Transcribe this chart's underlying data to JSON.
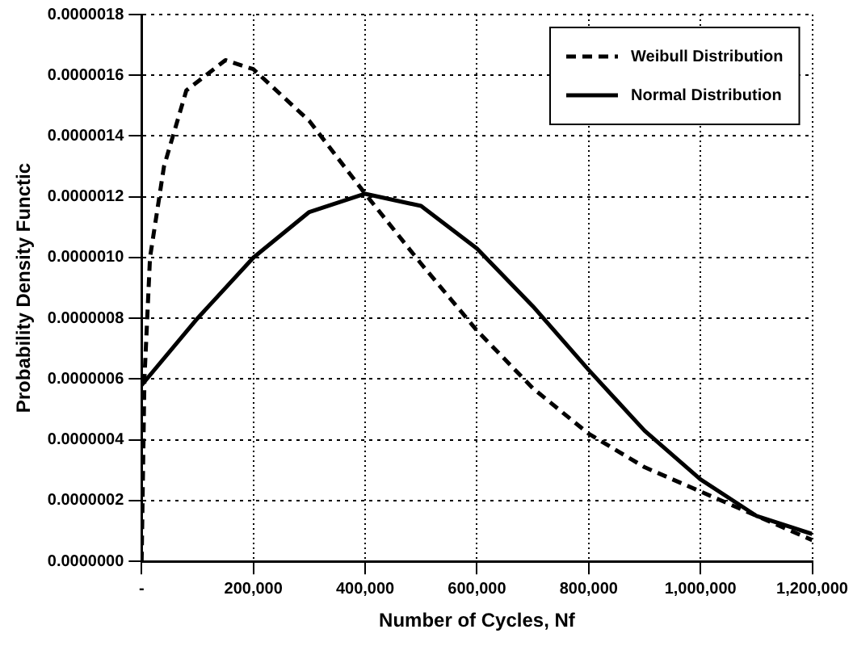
{
  "chart_data": {
    "type": "line",
    "xlabel": "Number of Cycles, Nf",
    "ylabel": "Probability Density Functic",
    "xlim": [
      0,
      1200000
    ],
    "xticks": [
      {
        "value": 0,
        "label": "-"
      },
      {
        "value": 200000,
        "label": "200,000"
      },
      {
        "value": 400000,
        "label": "400,000"
      },
      {
        "value": 600000,
        "label": "600,000"
      },
      {
        "value": 800000,
        "label": "800,000"
      },
      {
        "value": 1000000,
        "label": "1,000,000"
      },
      {
        "value": 1200000,
        "label": "1,200,000"
      }
    ],
    "ylim": [
      0,
      1.8e-06
    ],
    "yticks": [
      {
        "value": 0,
        "label": "0.0000000"
      },
      {
        "value": 2e-07,
        "label": "0.0000002"
      },
      {
        "value": 4e-07,
        "label": "0.0000004"
      },
      {
        "value": 6e-07,
        "label": "0.0000006"
      },
      {
        "value": 8e-07,
        "label": "0.0000008"
      },
      {
        "value": 1e-06,
        "label": "0.0000010"
      },
      {
        "value": 1.2e-06,
        "label": "0.0000012"
      },
      {
        "value": 1.4e-06,
        "label": "0.0000014"
      },
      {
        "value": 1.6e-06,
        "label": "0.0000016"
      },
      {
        "value": 1.8e-06,
        "label": "0.0000018"
      }
    ],
    "grid": true,
    "legend": "top right",
    "marker": "none",
    "series": [
      {
        "name": "Weibull Distribution",
        "color": "#000000",
        "line_style": "dashed",
        "x": [
          0,
          5000,
          15000,
          40000,
          80000,
          150000,
          200000,
          300000,
          400000,
          500000,
          600000,
          700000,
          800000,
          900000,
          1000000,
          1100000,
          1200000
        ],
        "values": [
          0,
          6e-07,
          1e-06,
          1.3e-06,
          1.55e-06,
          1.65e-06,
          1.62e-06,
          1.45e-06,
          1.21e-06,
          9.8e-07,
          7.6e-07,
          5.7e-07,
          4.2e-07,
          3.1e-07,
          2.3e-07,
          1.5e-07,
          7e-08
        ]
      },
      {
        "name": "Normal Distribution",
        "color": "#000000",
        "line_style": "solid",
        "x": [
          0,
          100000,
          200000,
          300000,
          400000,
          500000,
          600000,
          700000,
          800000,
          900000,
          1000000,
          1100000,
          1200000
        ],
        "values": [
          5.8e-07,
          8e-07,
          1e-06,
          1.15e-06,
          1.21e-06,
          1.17e-06,
          1.03e-06,
          8.4e-07,
          6.3e-07,
          4.3e-07,
          2.7e-07,
          1.5e-07,
          9e-08
        ]
      }
    ]
  }
}
